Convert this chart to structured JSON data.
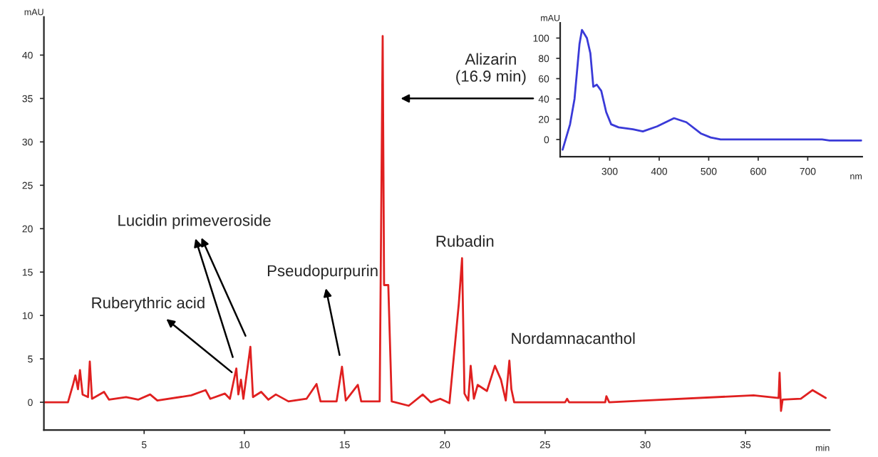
{
  "chart_data": [
    {
      "type": "line",
      "xlabel": "min",
      "ylabel": "mAU",
      "xlim": [
        0,
        39.2
      ],
      "ylim": [
        -3.2,
        44.4
      ],
      "xticks": [
        5,
        10,
        15,
        20,
        25,
        30,
        35
      ],
      "yticks": [
        0,
        5,
        10,
        15,
        20,
        25,
        30,
        35,
        40
      ],
      "grid": false,
      "legend": false,
      "series": [
        {
          "color": "#e02020",
          "x": [
            0,
            1.2,
            1.45,
            1.57,
            1.7,
            1.8,
            1.93,
            2.2,
            2.29,
            2.4,
            3.0,
            3.25,
            4.1,
            4.7,
            5.3,
            5.66,
            7.35,
            8.07,
            8.3,
            9.03,
            9.28,
            9.6,
            9.7,
            9.83,
            9.95,
            10.3,
            10.43,
            10.84,
            11.2,
            11.57,
            12.2,
            13.1,
            13.6,
            13.8,
            14.6,
            14.87,
            15.06,
            15.66,
            15.83,
            16.75,
            16.9,
            16.97,
            17.18,
            17.35,
            18.2,
            18.9,
            19.3,
            19.77,
            20.23,
            20.7,
            20.86,
            20.98,
            21.17,
            21.29,
            21.45,
            21.64,
            22.1,
            22.5,
            22.8,
            23.04,
            23.22,
            23.32,
            23.46,
            26.0,
            26.1,
            26.2,
            28.0,
            28.06,
            28.2,
            30.0,
            35.4,
            36.65,
            36.7,
            36.77,
            36.85,
            37.76,
            38.34,
            39.0
          ],
          "values": [
            0,
            0,
            2,
            3.1,
            1.5,
            3.7,
            0.9,
            0.6,
            4.7,
            0.4,
            1.2,
            0.3,
            0.6,
            0.3,
            0.9,
            0.2,
            0.8,
            1.4,
            0.4,
            1.0,
            0.4,
            3.9,
            0.9,
            2.6,
            0.4,
            6.4,
            0.6,
            1.2,
            0.3,
            0.9,
            0.1,
            0.4,
            2.1,
            0.1,
            0.1,
            4.1,
            0.2,
            2.0,
            0.1,
            0.1,
            42.2,
            13.5,
            13.5,
            0.1,
            -0.4,
            0.9,
            0,
            0.4,
            -0.1,
            11.4,
            16.6,
            1.0,
            0.2,
            4.2,
            0.4,
            2.0,
            1.3,
            4.2,
            2.6,
            0.2,
            4.8,
            1.5,
            0,
            0,
            0.4,
            0,
            0,
            0.7,
            0,
            0.2,
            0.8,
            0.5,
            3.4,
            -1.0,
            0.3,
            0.4,
            1.4,
            0.5
          ]
        }
      ],
      "annotations": [
        "Alizarin\n(16.9 min)",
        {
          "text": "Lucidin primeveroside",
          "x": 10.3,
          "y": 6.4
        },
        {
          "text": "Ruberythric acid",
          "x": 9.83,
          "y": 2.6
        },
        {
          "text": "Pseudopurpurin",
          "x": 14.87,
          "y": 4.1
        },
        {
          "text": "Rubadin",
          "x": 20.86,
          "y": 16.6
        },
        {
          "text": "Nordamnacanthol",
          "x": 23.22,
          "y": 4.8
        }
      ]
    },
    {
      "type": "line",
      "xlabel": "nm",
      "ylabel": "mAU",
      "xlim": [
        200,
        810
      ],
      "ylim": [
        -17,
        115
      ],
      "xticks": [
        300,
        400,
        500,
        600,
        700
      ],
      "yticks": [
        0,
        20,
        40,
        60,
        80,
        100
      ],
      "grid": false,
      "legend": false,
      "series": [
        {
          "color": "#3a3ad8",
          "x": [
            205,
            220,
            229,
            239,
            244,
            254,
            261,
            267,
            274,
            283,
            293,
            303,
            318,
            347,
            367,
            396,
            430,
            455,
            484,
            504,
            524,
            729,
            744,
            808
          ],
          "values": [
            -10,
            15,
            40,
            94,
            108,
            100,
            85,
            52,
            54,
            48,
            27,
            15,
            12,
            10,
            8,
            13,
            21,
            17,
            6,
            2,
            0,
            0,
            -1,
            -1
          ]
        }
      ]
    }
  ]
}
